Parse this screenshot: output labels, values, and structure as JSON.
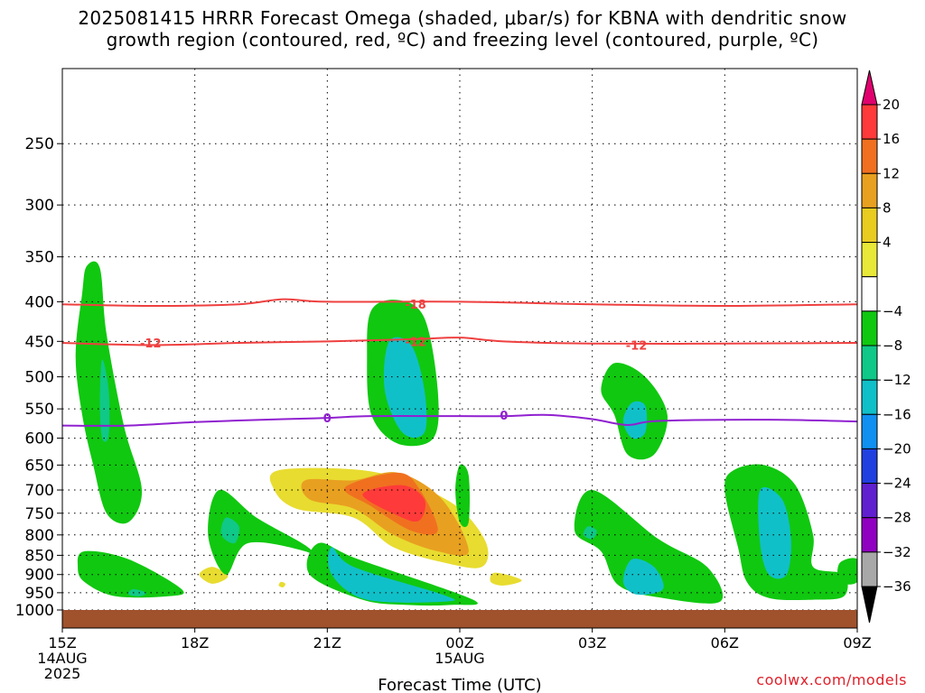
{
  "chart_data": {
    "type": "heatmap",
    "title_line1": "2025081415 HRRR Forecast Omega (shaded, μbar/s) for KBNA with dendritic snow",
    "title_line2": "growth region (contoured, red, ºC) and freezing level (contoured, purple, ºC)",
    "xlabel": "Forecast Time (UTC)",
    "ylabel": "",
    "x_hours": [
      0,
      3,
      6,
      9,
      12,
      15,
      18
    ],
    "x_ticks": [
      {
        "label": "15Z",
        "sub1": "14AUG",
        "sub2": "2025"
      },
      {
        "label": "18Z",
        "sub1": "",
        "sub2": ""
      },
      {
        "label": "21Z",
        "sub1": "",
        "sub2": ""
      },
      {
        "label": "00Z",
        "sub1": "15AUG",
        "sub2": ""
      },
      {
        "label": "03Z",
        "sub1": "",
        "sub2": ""
      },
      {
        "label": "06Z",
        "sub1": "",
        "sub2": ""
      },
      {
        "label": "09Z",
        "sub1": "",
        "sub2": ""
      }
    ],
    "y_ticks": [
      "250",
      "300",
      "350",
      "400",
      "450",
      "500",
      "550",
      "600",
      "650",
      "700",
      "750",
      "800",
      "850",
      "900",
      "950",
      "1000"
    ],
    "y_tick_values": [
      250,
      300,
      350,
      400,
      450,
      500,
      550,
      600,
      650,
      700,
      750,
      800,
      850,
      900,
      950,
      1000
    ],
    "xlim_hours": [
      0,
      18
    ],
    "ylim_hPa": [
      200,
      1000
    ],
    "y_scale": "log-pressure",
    "grid": true,
    "colorbar": {
      "labels": [
        "20",
        "16",
        "12",
        "8",
        "4",
        "−4",
        "−8",
        "−12",
        "−16",
        "−20",
        "−24",
        "−28",
        "−32",
        "−36"
      ],
      "colors": [
        "#e0006e",
        "#ff3a3a",
        "#f07020",
        "#e8a020",
        "#e8cc20",
        "#e8e838",
        "#ffffff",
        "#10c810",
        "#10c888",
        "#10c0c8",
        "#1090f0",
        "#2040e0",
        "#6020d0",
        "#9000c0",
        "#a8a8a8",
        "#000000"
      ]
    },
    "contours": [
      {
        "label": "-18",
        "color": "#ef4040",
        "points": [
          [
            0,
            403
          ],
          [
            2,
            405
          ],
          [
            4,
            403
          ],
          [
            5,
            397
          ],
          [
            6,
            400
          ],
          [
            9,
            400
          ],
          [
            12,
            403
          ],
          [
            15,
            405
          ],
          [
            18,
            403
          ]
        ],
        "label_at": [
          [
            8,
            403
          ]
        ]
      },
      {
        "label": "-12",
        "color": "#ef4040",
        "points": [
          [
            0,
            452
          ],
          [
            2,
            455
          ],
          [
            4,
            452
          ],
          [
            6,
            450
          ],
          [
            8,
            447
          ],
          [
            9,
            445
          ],
          [
            10,
            450
          ],
          [
            12,
            453
          ],
          [
            15,
            453
          ],
          [
            18,
            452
          ]
        ],
        "label_at": [
          [
            2,
            452
          ],
          [
            8,
            450
          ],
          [
            13,
            455
          ]
        ]
      },
      {
        "label": "0",
        "color": "#9020d0",
        "points": [
          [
            0,
            578
          ],
          [
            1.5,
            578
          ],
          [
            3,
            572
          ],
          [
            5,
            567
          ],
          [
            6,
            565
          ],
          [
            7,
            562
          ],
          [
            9,
            562
          ],
          [
            10,
            562
          ],
          [
            11,
            560
          ],
          [
            12,
            567
          ],
          [
            12.8,
            577
          ],
          [
            13.5,
            570
          ],
          [
            16,
            568
          ],
          [
            18,
            571
          ]
        ],
        "label_at": [
          [
            6,
            565
          ],
          [
            10,
            560
          ]
        ]
      }
    ],
    "omega_regions": [
      {
        "value": -6,
        "points": [
          [
            0.55,
            360
          ],
          [
            0.85,
            362
          ],
          [
            1.0,
            440
          ],
          [
            1.4,
            580
          ],
          [
            1.8,
            700
          ],
          [
            1.5,
            770
          ],
          [
            1.0,
            750
          ],
          [
            0.7,
            650
          ],
          [
            0.45,
            560
          ],
          [
            0.3,
            470
          ],
          [
            0.45,
            390
          ]
        ]
      },
      {
        "value": -10,
        "points": [
          [
            0.9,
            475
          ],
          [
            1.05,
            520
          ],
          [
            1.05,
            595
          ],
          [
            0.9,
            600
          ],
          [
            0.85,
            540
          ]
        ]
      },
      {
        "value": -6,
        "points": [
          [
            0.5,
            840
          ],
          [
            1.5,
            860
          ],
          [
            2.7,
            940
          ],
          [
            2.4,
            960
          ],
          [
            1.2,
            960
          ],
          [
            0.5,
            920
          ],
          [
            0.35,
            880
          ]
        ]
      },
      {
        "value": -10,
        "points": [
          [
            1.6,
            940
          ],
          [
            1.9,
            950
          ],
          [
            1.75,
            960
          ],
          [
            1.5,
            955
          ]
        ]
      },
      {
        "value": 5,
        "points": [
          [
            3.4,
            880
          ],
          [
            3.75,
            905
          ],
          [
            3.4,
            925
          ],
          [
            3.1,
            900
          ]
        ]
      },
      {
        "value": -6,
        "points": [
          [
            3.55,
            700
          ],
          [
            4.4,
            760
          ],
          [
            5.5,
            825
          ],
          [
            5.9,
            870
          ],
          [
            5.5,
            840
          ],
          [
            4.2,
            820
          ],
          [
            3.7,
            900
          ],
          [
            3.3,
            800
          ]
        ]
      },
      {
        "value": -10,
        "points": [
          [
            3.7,
            760
          ],
          [
            4.0,
            780
          ],
          [
            3.9,
            820
          ],
          [
            3.6,
            800
          ]
        ]
      },
      {
        "value": -6,
        "points": [
          [
            5.8,
            820
          ],
          [
            6.7,
            860
          ],
          [
            9.3,
            970
          ],
          [
            8.8,
            985
          ],
          [
            7.8,
            985
          ],
          [
            6.8,
            970
          ],
          [
            5.6,
            900
          ]
        ]
      },
      {
        "value": -12,
        "points": [
          [
            6.1,
            830
          ],
          [
            6.6,
            880
          ],
          [
            8.6,
            955
          ],
          [
            8.7,
            975
          ],
          [
            6.9,
            970
          ],
          [
            6.1,
            900
          ]
        ]
      },
      {
        "value": 5,
        "points": [
          [
            4.9,
            660
          ],
          [
            6.8,
            660
          ],
          [
            8.0,
            690
          ],
          [
            9.0,
            740
          ],
          [
            9.6,
            820
          ],
          [
            9.5,
            880
          ],
          [
            8.7,
            870
          ],
          [
            7.5,
            830
          ],
          [
            6.6,
            760
          ],
          [
            5.3,
            740
          ],
          [
            4.8,
            700
          ]
        ]
      },
      {
        "value": 9,
        "points": [
          [
            5.5,
            680
          ],
          [
            6.6,
            680
          ],
          [
            7.6,
            665
          ],
          [
            8.6,
            720
          ],
          [
            9.2,
            840
          ],
          [
            8.5,
            840
          ],
          [
            7.5,
            800
          ],
          [
            6.6,
            740
          ],
          [
            5.6,
            720
          ]
        ]
      },
      {
        "value": 13,
        "points": [
          [
            6.4,
            695
          ],
          [
            7.6,
            665
          ],
          [
            8.1,
            700
          ],
          [
            8.5,
            790
          ],
          [
            7.9,
            790
          ],
          [
            7.0,
            735
          ]
        ]
      },
      {
        "value": 18,
        "points": [
          [
            6.8,
            710
          ],
          [
            7.7,
            690
          ],
          [
            8.2,
            720
          ],
          [
            8.1,
            765
          ],
          [
            7.7,
            760
          ]
        ]
      },
      {
        "value": 5,
        "points": [
          [
            4.95,
            920
          ],
          [
            5.05,
            925
          ],
          [
            5.0,
            935
          ],
          [
            4.9,
            930
          ]
        ]
      },
      {
        "value": 5,
        "points": [
          [
            9.8,
            895
          ],
          [
            10.4,
            915
          ],
          [
            10.0,
            930
          ],
          [
            9.7,
            920
          ]
        ]
      },
      {
        "value": -6,
        "points": [
          [
            7.0,
            410
          ],
          [
            7.6,
            398
          ],
          [
            8.2,
            420
          ],
          [
            8.5,
            520
          ],
          [
            8.4,
            600
          ],
          [
            7.6,
            610
          ],
          [
            7.0,
            560
          ],
          [
            6.9,
            470
          ]
        ]
      },
      {
        "value": -12,
        "points": [
          [
            7.4,
            450
          ],
          [
            7.9,
            455
          ],
          [
            8.2,
            520
          ],
          [
            8.2,
            590
          ],
          [
            7.7,
            590
          ],
          [
            7.3,
            520
          ]
        ]
      },
      {
        "value": -6,
        "points": [
          [
            9.0,
            650
          ],
          [
            9.2,
            670
          ],
          [
            9.2,
            770
          ],
          [
            9.0,
            770
          ],
          [
            8.9,
            700
          ]
        ]
      },
      {
        "value": -6,
        "points": [
          [
            12.5,
            480
          ],
          [
            13.2,
            500
          ],
          [
            13.7,
            560
          ],
          [
            13.4,
            630
          ],
          [
            12.8,
            630
          ],
          [
            12.5,
            560
          ],
          [
            12.2,
            520
          ]
        ]
      },
      {
        "value": -12,
        "points": [
          [
            12.9,
            540
          ],
          [
            13.2,
            545
          ],
          [
            13.2,
            590
          ],
          [
            12.9,
            600
          ],
          [
            12.7,
            570
          ]
        ]
      },
      {
        "value": -6,
        "points": [
          [
            12.0,
            700
          ],
          [
            13.5,
            810
          ],
          [
            14.6,
            880
          ],
          [
            14.9,
            975
          ],
          [
            13.6,
            965
          ],
          [
            12.6,
            930
          ],
          [
            12.2,
            840
          ],
          [
            11.6,
            790
          ]
        ]
      },
      {
        "value": -12,
        "points": [
          [
            12.9,
            860
          ],
          [
            13.4,
            880
          ],
          [
            13.6,
            940
          ],
          [
            13.0,
            955
          ],
          [
            12.7,
            920
          ]
        ]
      },
      {
        "value": -10,
        "points": [
          [
            11.9,
            780
          ],
          [
            12.1,
            790
          ],
          [
            12.0,
            810
          ],
          [
            11.8,
            800
          ]
        ]
      },
      {
        "value": -6,
        "points": [
          [
            15.2,
            660
          ],
          [
            15.9,
            650
          ],
          [
            16.6,
            690
          ],
          [
            17.0,
            800
          ],
          [
            17.0,
            880
          ],
          [
            17.7,
            900
          ],
          [
            17.7,
            960
          ],
          [
            17.0,
            970
          ],
          [
            16.0,
            965
          ],
          [
            15.5,
            920
          ],
          [
            15.3,
            830
          ],
          [
            15.0,
            700
          ]
        ]
      },
      {
        "value": -12,
        "points": [
          [
            15.8,
            700
          ],
          [
            16.3,
            720
          ],
          [
            16.5,
            810
          ],
          [
            16.4,
            900
          ],
          [
            16.0,
            900
          ],
          [
            15.8,
            820
          ]
        ]
      },
      {
        "value": -6,
        "points": [
          [
            17.6,
            870
          ],
          [
            18,
            860
          ],
          [
            18,
            920
          ],
          [
            17.6,
            920
          ]
        ]
      }
    ],
    "terrain_color": "#a0522d"
  },
  "credit": "coolwx.com/models"
}
